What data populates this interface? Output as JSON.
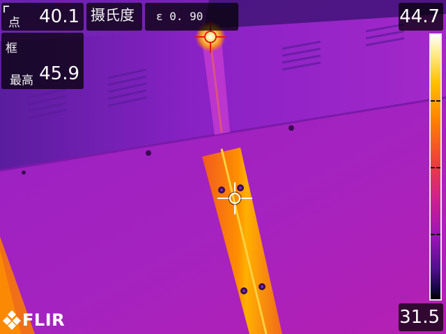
{
  "spot": {
    "label": "点",
    "value": "40.1"
  },
  "unit": {
    "label": "摄氏度"
  },
  "emissivity": {
    "label": "ε  0. 90"
  },
  "frame": {
    "label": "框",
    "max_label": "最高",
    "max_value": "45.9"
  },
  "scale": {
    "max": "44.7",
    "min": "31.5"
  },
  "logo": {
    "text": "FLIR"
  },
  "palette": {
    "hot": "#ffd000",
    "mid": "#ff8a00",
    "cool": "#a31cc8",
    "cold": "#4a0d8c"
  }
}
